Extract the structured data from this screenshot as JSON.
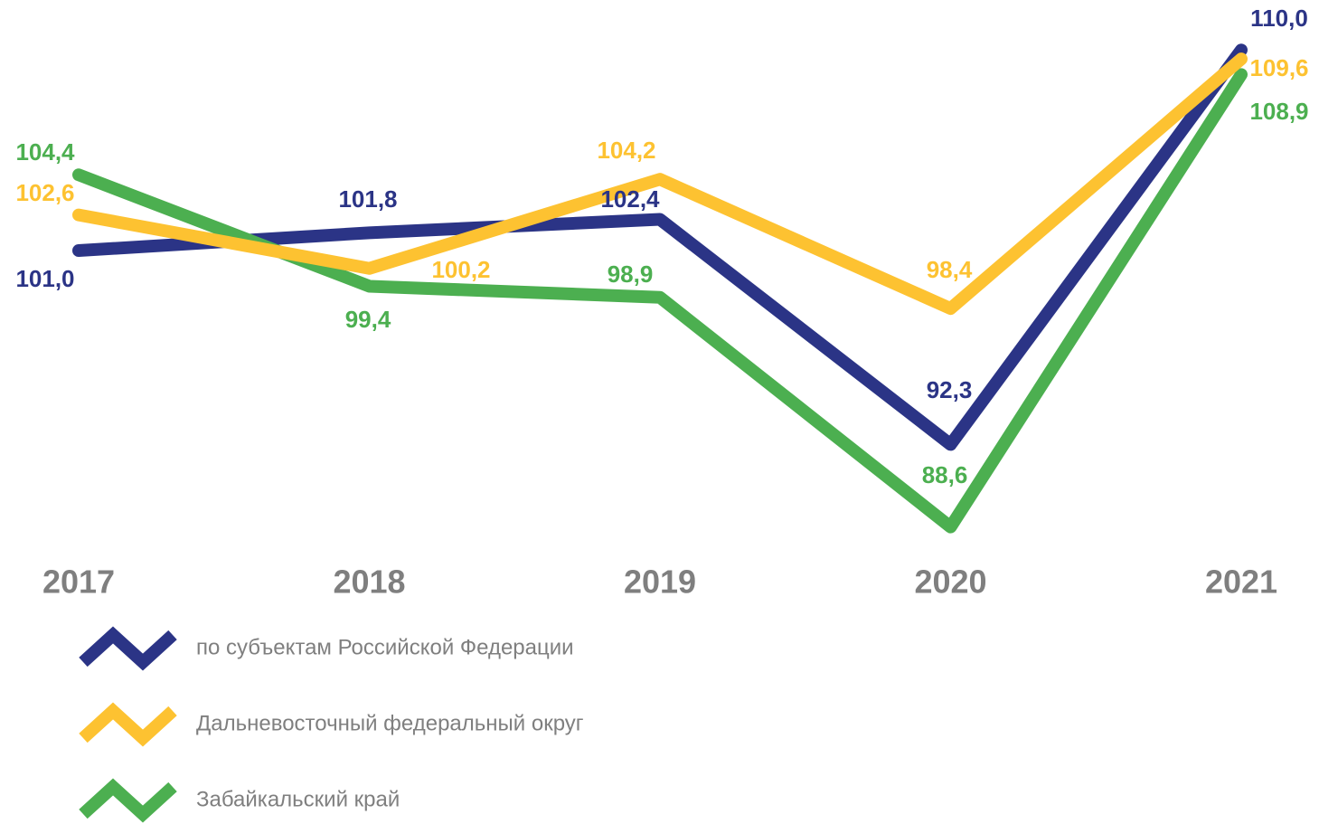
{
  "chart_data": {
    "type": "line",
    "categories": [
      "2017",
      "2018",
      "2019",
      "2020",
      "2021"
    ],
    "series": [
      {
        "name": "по субъектам Российской Федерации",
        "color": "#2b3486",
        "values": [
          101.0,
          101.8,
          102.4,
          92.3,
          110.0
        ],
        "value_labels": [
          "101,0",
          "101,8",
          "102,4",
          "92,3",
          "110,0"
        ]
      },
      {
        "name": "Дальневосточный федеральный округ",
        "color": "#fdc231",
        "values": [
          102.6,
          100.2,
          104.2,
          98.4,
          109.6
        ],
        "value_labels": [
          "102,6",
          "100,2",
          "104,2",
          "98,4",
          "109,6"
        ]
      },
      {
        "name": "Забайкальский край",
        "color": "#4caf50",
        "values": [
          104.4,
          99.4,
          98.9,
          88.6,
          108.9
        ],
        "value_labels": [
          "104,4",
          "99,4",
          "98,9",
          "88,6",
          "108,9"
        ]
      }
    ],
    "ylim": [
      87,
      112
    ]
  }
}
